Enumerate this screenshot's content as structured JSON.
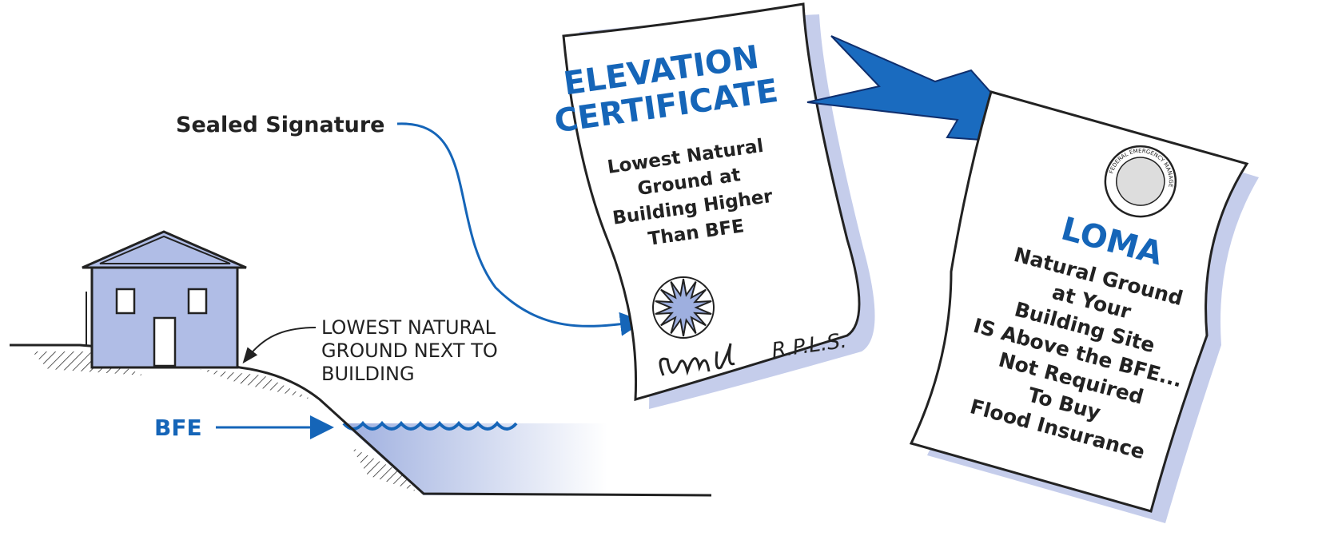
{
  "labels": {
    "sealed_signature": "Sealed Signature",
    "lowest_ground": [
      "LOWEST NATURAL",
      "GROUND NEXT TO",
      "BUILDING"
    ],
    "bfe": "BFE"
  },
  "elevation_certificate": {
    "title": [
      "ELEVATION",
      "CERTIFICATE"
    ],
    "body": [
      "Lowest Natural",
      "Ground at",
      "Building Higher",
      "Than BFE"
    ],
    "signature_credential": "R.P.L.S."
  },
  "loma": {
    "seal_text": "FEDERAL EMERGENCY MANAGEMENT AGENCY",
    "title": "LOMA",
    "body": [
      "Natural Ground",
      "at Your",
      "Building Site",
      "IS Above the BFE...",
      "Not Required",
      "To Buy",
      "Flood Insurance"
    ]
  }
}
